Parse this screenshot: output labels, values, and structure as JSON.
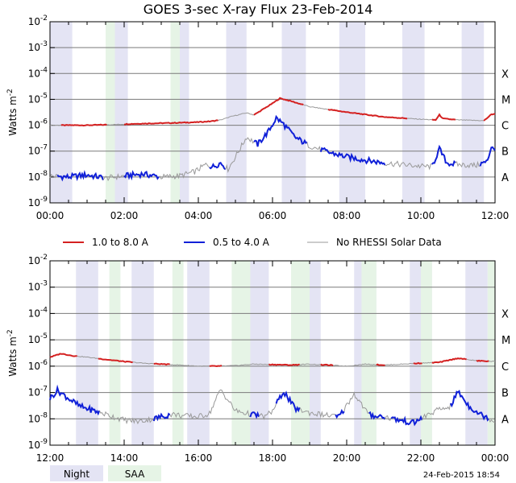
{
  "chart_data": {
    "type": "line",
    "title": "GOES 3-sec X-ray Flux   23-Feb-2014",
    "ylabel": "Watts m",
    "ylabel_exponent": "-2",
    "y_scale": "log",
    "y_ticks": [
      {
        "base": "10",
        "exp": "-9"
      },
      {
        "base": "10",
        "exp": "-8"
      },
      {
        "base": "10",
        "exp": "-7"
      },
      {
        "base": "10",
        "exp": "-6"
      },
      {
        "base": "10",
        "exp": "-5"
      },
      {
        "base": "10",
        "exp": "-4"
      },
      {
        "base": "10",
        "exp": "-3"
      },
      {
        "base": "10",
        "exp": "-2"
      }
    ],
    "flare_classes": [
      {
        "label": "A",
        "flux": 1e-08
      },
      {
        "label": "B",
        "flux": 1e-07
      },
      {
        "label": "C",
        "flux": 1e-06
      },
      {
        "label": "M",
        "flux": 1e-05
      },
      {
        "label": "X",
        "flux": 0.0001
      }
    ],
    "gridlines": true,
    "legend_position": "between-panels",
    "series": [
      {
        "name": "1.0 to 8.0 A",
        "color": "#d42020",
        "alt_color": "#999999"
      },
      {
        "name": "0.5 to 4.0 A",
        "color": "#1020d8",
        "alt_color": "#999999"
      },
      {
        "name": "No RHESSI Solar Data",
        "color": "#999999"
      }
    ],
    "bands": [
      {
        "name": "Night",
        "color": "#e4e4f4"
      },
      {
        "name": "SAA",
        "color": "#e6f4e6"
      }
    ],
    "panels": [
      {
        "x_ticks": [
          "00:00",
          "02:00",
          "04:00",
          "06:00",
          "08:00",
          "10:00",
          "12:00"
        ],
        "xlim_hours": [
          0,
          12
        ],
        "night": [
          [
            0.0,
            0.6
          ],
          [
            1.75,
            2.1
          ],
          [
            3.5,
            3.75
          ],
          [
            4.75,
            5.3
          ],
          [
            6.25,
            6.9
          ],
          [
            7.8,
            8.5
          ],
          [
            9.5,
            10.1
          ],
          [
            11.1,
            11.7
          ]
        ],
        "saa": [
          [
            1.5,
            1.75
          ],
          [
            3.25,
            3.5
          ]
        ],
        "long": {
          "x": [
            0,
            1.0,
            1.6,
            2.0,
            2.4,
            3.0,
            3.5,
            3.9,
            4.3,
            4.6,
            4.9,
            5.3,
            5.5,
            6.0,
            6.2,
            6.5,
            7.0,
            8.0,
            9.0,
            10.0,
            10.4,
            10.5,
            10.6,
            11.0,
            11.7,
            11.9,
            12.0
          ],
          "y": [
            1e-06,
            1e-06,
            1.05e-06,
            1.1e-06,
            1.15e-06,
            1.2e-06,
            1.25e-06,
            1.3e-06,
            1.4e-06,
            1.6e-06,
            2.2e-06,
            3e-06,
            2.5e-06,
            7e-06,
            1.1e-05,
            8.5e-06,
            5.2e-06,
            3.2e-06,
            2.1e-06,
            1.7e-06,
            1.6e-06,
            2.5e-06,
            1.8e-06,
            1.6e-06,
            1.5e-06,
            2.6e-06,
            2.8e-06
          ],
          "colored": [
            [
              0.3,
              1.5
            ],
            [
              2.0,
              4.5
            ],
            [
              5.5,
              6.8
            ],
            [
              7.5,
              9.6
            ],
            [
              10.3,
              10.9
            ],
            [
              11.7,
              12.0
            ]
          ]
        },
        "short": {
          "x": [
            0,
            0.5,
            1.0,
            1.5,
            2.0,
            2.5,
            3.0,
            3.5,
            3.9,
            4.2,
            4.4,
            4.6,
            4.8,
            5.0,
            5.3,
            5.6,
            5.9,
            6.1,
            6.3,
            6.6,
            7.0,
            7.5,
            8.0,
            8.5,
            9.0,
            9.5,
            10.0,
            10.3,
            10.5,
            10.7,
            11.0,
            11.5,
            11.8,
            11.9,
            12.0
          ],
          "y": [
            1.1e-08,
            1e-08,
            1.2e-08,
            9e-09,
            1.1e-08,
            1.3e-08,
            1e-08,
            1.1e-08,
            1.6e-08,
            3e-08,
            2.5e-08,
            3.5e-08,
            2e-08,
            6e-08,
            3.5e-07,
            1.8e-07,
            6e-07,
            1.9e-06,
            1.1e-06,
            3.5e-07,
            1.6e-07,
            9e-08,
            6e-08,
            4.5e-08,
            3.5e-08,
            3e-08,
            2.6e-08,
            2.5e-08,
            1.2e-07,
            3.5e-08,
            3e-08,
            2.8e-08,
            4e-08,
            1.6e-07,
            1.2e-07
          ],
          "colored": [
            [
              0.2,
              1.4
            ],
            [
              2.0,
              2.9
            ],
            [
              4.3,
              4.7
            ],
            [
              5.5,
              6.9
            ],
            [
              7.3,
              9.0
            ],
            [
              10.3,
              10.9
            ],
            [
              11.6,
              12.0
            ]
          ]
        }
      },
      {
        "x_ticks": [
          "12:00",
          "14:00",
          "16:00",
          "18:00",
          "20:00",
          "22:00",
          "00:00"
        ],
        "xlim_hours": [
          12,
          24
        ],
        "night": [
          [
            12.7,
            13.3
          ],
          [
            14.2,
            14.8
          ],
          [
            15.7,
            16.3
          ],
          [
            17.2,
            17.9
          ],
          [
            18.7,
            19.3
          ],
          [
            20.2,
            20.8
          ],
          [
            21.7,
            22.3
          ],
          [
            23.2,
            23.8
          ]
        ],
        "saa": [
          [
            13.6,
            13.9
          ],
          [
            15.3,
            15.6
          ],
          [
            16.9,
            17.4
          ],
          [
            18.5,
            19.0
          ],
          [
            20.4,
            20.8
          ],
          [
            22.0,
            22.3
          ],
          [
            23.8,
            24.0
          ]
        ],
        "long": {
          "x": [
            12,
            12.3,
            12.6,
            13.0,
            13.5,
            14.0,
            14.5,
            15.0,
            15.5,
            16.0,
            16.5,
            17.0,
            17.5,
            18.0,
            18.5,
            19.0,
            19.5,
            20.0,
            20.5,
            21.0,
            21.5,
            22.0,
            22.5,
            23.0,
            23.5,
            24.0
          ],
          "y": [
            2.2e-06,
            3e-06,
            2.5e-06,
            2.2e-06,
            1.8e-06,
            1.5e-06,
            1.3e-06,
            1.2e-06,
            1.1e-06,
            1e-06,
            1e-06,
            1.05e-06,
            1.2e-06,
            1.15e-06,
            1.1e-06,
            1.2e-06,
            1.1e-06,
            1e-06,
            1.2e-06,
            1.1e-06,
            1.2e-06,
            1.3e-06,
            1.4e-06,
            2e-06,
            1.6e-06,
            1.5e-06
          ],
          "colored": [
            [
              12.0,
              12.7
            ],
            [
              13.3,
              14.2
            ],
            [
              14.8,
              15.2
            ],
            [
              16.3,
              16.6
            ],
            [
              17.9,
              18.7
            ],
            [
              19.3,
              19.6
            ],
            [
              20.8,
              21.0
            ],
            [
              21.8,
              22.0
            ],
            [
              22.3,
              23.2
            ],
            [
              23.5,
              23.8
            ]
          ]
        },
        "short": {
          "x": [
            12,
            12.2,
            12.5,
            12.8,
            13.2,
            13.5,
            14.0,
            14.4,
            14.8,
            15.0,
            15.3,
            15.6,
            16.0,
            16.3,
            16.6,
            17.0,
            17.4,
            17.8,
            18.0,
            18.3,
            18.6,
            19.0,
            19.4,
            19.8,
            20.2,
            20.6,
            21.0,
            21.4,
            21.8,
            22.1,
            22.4,
            22.8,
            23.0,
            23.3,
            23.6,
            24.0
          ],
          "y": [
            6e-08,
            1.2e-07,
            6e-08,
            3e-08,
            2e-08,
            1.5e-08,
            9e-09,
            8e-09,
            1e-08,
            1.2e-08,
            1.5e-08,
            1.3e-08,
            1.2e-08,
            1.6e-08,
            1.3e-07,
            2e-08,
            1.5e-08,
            1.2e-08,
            2e-08,
            1.1e-07,
            2.5e-08,
            1.7e-08,
            1.4e-08,
            1.2e-08,
            9e-08,
            1.4e-08,
            1.2e-08,
            9e-09,
            7e-09,
            1.2e-08,
            2e-08,
            3e-08,
            1.1e-07,
            3e-08,
            1.5e-08,
            8e-09
          ],
          "colored": [
            [
              12.0,
              13.3
            ],
            [
              14.8,
              15.2
            ],
            [
              17.4,
              17.6
            ],
            [
              18.1,
              18.7
            ],
            [
              19.7,
              19.9
            ],
            [
              20.6,
              21.0
            ],
            [
              21.2,
              22.0
            ],
            [
              22.8,
              23.8
            ]
          ]
        }
      }
    ]
  },
  "footer": {
    "timestamp": "24-Feb-2015 18:54"
  }
}
